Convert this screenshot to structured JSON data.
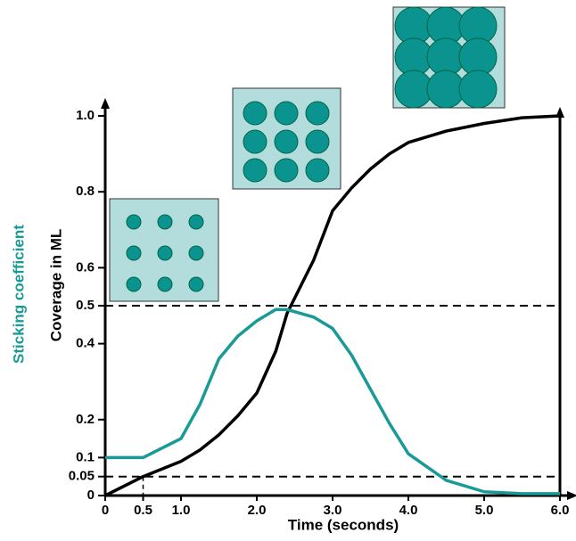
{
  "chart_data": {
    "type": "line",
    "x_label": "Time (seconds)",
    "y_label": "Coverage in ML",
    "y_label_2": "Sticking coefficient",
    "x": [
      0,
      0.5,
      1,
      1.25,
      1.5,
      1.75,
      2,
      2.25,
      2.4,
      2.75,
      3,
      3.25,
      3.5,
      3.75,
      4,
      4.5,
      5,
      5.5,
      6
    ],
    "series": [
      {
        "name": "Coverage in ML",
        "color": "#000000",
        "values": [
          0,
          0.05,
          0.09,
          0.12,
          0.16,
          0.21,
          0.27,
          0.38,
          0.48,
          0.62,
          0.75,
          0.81,
          0.86,
          0.9,
          0.93,
          0.96,
          0.98,
          0.995,
          1.0
        ]
      },
      {
        "name": "Sticking coefficient",
        "color": "#1a9a96",
        "values": [
          0.1,
          0.1,
          0.15,
          0.24,
          0.36,
          0.42,
          0.46,
          0.49,
          0.49,
          0.47,
          0.44,
          0.37,
          0.28,
          0.19,
          0.11,
          0.04,
          0.01,
          0.005,
          0.005
        ]
      }
    ],
    "xlim": [
      0,
      6
    ],
    "ylim": [
      0,
      1.0
    ],
    "xticks": [
      0,
      0.5,
      {
        "value": 1,
        "label": "1.0"
      },
      {
        "value": 2,
        "label": "2.0"
      },
      {
        "value": 3,
        "label": "3.0"
      },
      {
        "value": 4,
        "label": "4.0"
      },
      {
        "value": 5,
        "label": "5.0"
      },
      {
        "value": 6,
        "label": "6.0"
      }
    ],
    "yticks": [
      0,
      0.05,
      0.1,
      0.2,
      0.4,
      0.5,
      0.6,
      0.8,
      {
        "value": 1,
        "label": "1.0"
      }
    ],
    "reference_lines": [
      0.5,
      0.05
    ],
    "reference_vline": 0.5
  }
}
